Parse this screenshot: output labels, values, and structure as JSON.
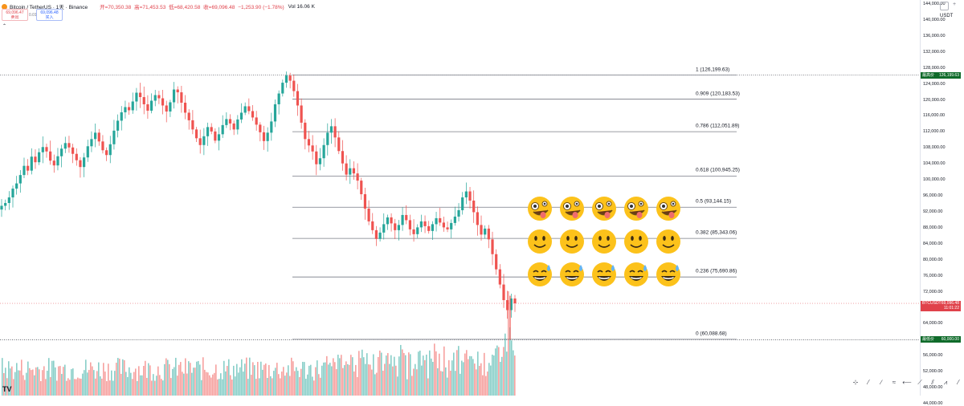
{
  "header": {
    "symbol_title": "Bitcoin / TetherUS · 1天 · Binance",
    "ohlc": {
      "open": "开=70,350.38",
      "high": "高=71,453.53",
      "low": "低=68,420.58",
      "close": "收=69,096.48",
      "change": "−1,253.90 (−1.78%)"
    },
    "volume": "Vol 16.06 K",
    "sell_price": "69,096.47",
    "sell_label": "卖出",
    "buy_price": "69,096.48",
    "buy_label": "买入",
    "spread": "0.01",
    "collapse_glyph": "⌃"
  },
  "top_right": {
    "plus": "+",
    "currency": "USDT"
  },
  "price_axis": {
    "ticks": [
      "144,000.00",
      "140,000.00",
      "136,000.00",
      "132,000.00",
      "128,000.00",
      "124,000.00",
      "120,000.00",
      "116,000.00",
      "112,000.00",
      "108,000.00",
      "104,000.00",
      "100,000.00",
      "96,000.00",
      "92,000.00",
      "88,000.00",
      "84,000.00",
      "80,000.00",
      "76,000.00",
      "72,000.00",
      "64,000.00",
      "60,000.00",
      "56,000.00",
      "52,000.00",
      "48,000.00",
      "44,000.00"
    ],
    "high_tag": {
      "label": "最高价",
      "value": "126,199.63"
    },
    "low_tag": {
      "label": "最低价",
      "value": "60,000.00"
    },
    "current_tag": {
      "symbol": "BTCUSDT",
      "value": "69,096.48",
      "countdown": "11:01:22"
    }
  },
  "fibonacci": [
    {
      "ratio": "1 (126,199.63)",
      "price": 126199.63
    },
    {
      "ratio": "0.909 (120,183.53)",
      "price": 120183.53
    },
    {
      "ratio": "0.786 (112,051.89)",
      "price": 112051.89
    },
    {
      "ratio": "0.618 (100,945.25)",
      "price": 100945.25
    },
    {
      "ratio": "0.5 (93,144.15)",
      "price": 93144.15
    },
    {
      "ratio": "0.382 (85,343.06)",
      "price": 85343.06
    },
    {
      "ratio": "0.236 (75,690.86)",
      "price": 75690.86
    },
    {
      "ratio": "0 (60,088.68)",
      "price": 60088.68
    }
  ],
  "emoji_rows": [
    "zany-face",
    "smiling-face",
    "grinning-face-with-sweat"
  ],
  "colors": {
    "up": "#26a69a",
    "down": "#ef5350",
    "accent_green": "#0f6b2a",
    "fib_line": "#787b86"
  },
  "toolbar": {
    "tools": [
      "⊹",
      "⁄",
      "∕",
      "≈",
      "⟵",
      "⟋",
      "⫽",
      "⩘",
      "⁄",
      "↗",
      "⋏",
      "⫫"
    ]
  },
  "branding": {
    "logo": "TV"
  },
  "chart_data": {
    "type": "candlestick",
    "symbol": "BTCUSDT",
    "interval": "1D",
    "ylim": [
      42000,
      146000
    ],
    "key_points": [
      {
        "label": "all-time high",
        "price": 126199.63
      },
      {
        "label": "period low",
        "price": 60000.0
      },
      {
        "label": "last",
        "price": 69096.48
      }
    ],
    "closes": [
      93500,
      94200,
      95600,
      97800,
      99100,
      101200,
      103500,
      102300,
      105800,
      104400,
      106900,
      108200,
      107100,
      104800,
      103600,
      105900,
      107800,
      109200,
      108100,
      106500,
      104900,
      103200,
      105600,
      108400,
      110200,
      111800,
      109600,
      107400,
      106200,
      108900,
      112300,
      114800,
      116900,
      118200,
      117400,
      119600,
      121800,
      120700,
      118900,
      117300,
      119800,
      121200,
      120400,
      118600,
      117100,
      119400,
      122600,
      121900,
      119300,
      116800,
      114900,
      112600,
      110400,
      108700,
      110900,
      113200,
      112100,
      109800,
      111400,
      113700,
      115200,
      114100,
      112600,
      115100,
      116800,
      118400,
      117200,
      115600,
      113800,
      111900,
      109700,
      111800,
      114600,
      118900,
      121600,
      124300,
      126100,
      124800,
      122200,
      118600,
      114300,
      110200,
      108600,
      107100,
      103900,
      105400,
      108700,
      111800,
      113400,
      110600,
      107200,
      104100,
      101300,
      102900,
      101600,
      99800,
      96400,
      92800,
      89600,
      87400,
      85200,
      86800,
      88900,
      90600,
      89100,
      87400,
      88700,
      91200,
      89900,
      87600,
      86400,
      88100,
      89600,
      88400,
      87200,
      88900,
      90400,
      89300,
      88100,
      87600,
      89200,
      90800,
      92400,
      95600,
      97100,
      94800,
      91900,
      88700,
      86300,
      87800,
      85100,
      81400,
      77600,
      73800,
      69900,
      67400,
      70300,
      69096.48
    ],
    "volume_relative": "tall spike near the latest candles"
  }
}
